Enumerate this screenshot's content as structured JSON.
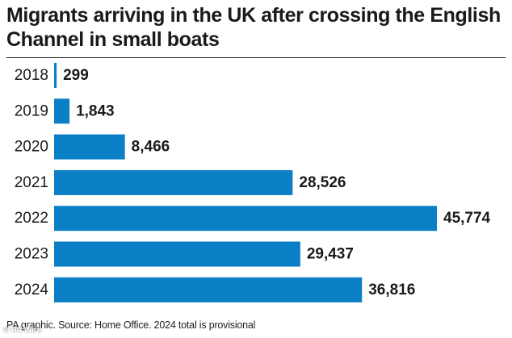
{
  "title": "Migrants arriving in the UK after crossing the English Channel in small boats",
  "footer": "PA graphic. Source: Home Office. 2024 total is provisional",
  "watermark": "© PA Wire",
  "colors": {
    "bar": "#0a7fc5",
    "text": "#1a1a1a"
  },
  "chart_data": {
    "type": "bar",
    "orientation": "horizontal",
    "categories": [
      "2018",
      "2019",
      "2020",
      "2021",
      "2022",
      "2023",
      "2024"
    ],
    "values": [
      299,
      1843,
      8466,
      28526,
      45774,
      29437,
      36816
    ],
    "value_labels": [
      "299",
      "1,843",
      "8,466",
      "28,526",
      "45,774",
      "29,437",
      "36,816"
    ],
    "title": "Migrants arriving in the UK after crossing the English Channel in small boats",
    "xlabel": "",
    "ylabel": "",
    "xlim": [
      0,
      45774
    ],
    "grid": false,
    "legend": "none"
  }
}
